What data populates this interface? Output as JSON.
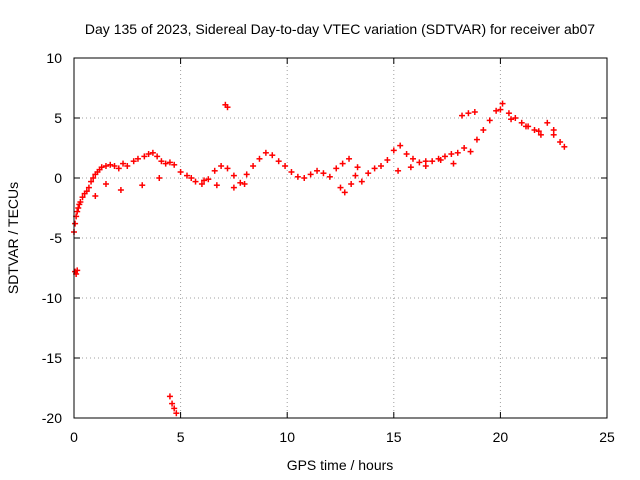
{
  "chart_data": {
    "type": "scatter",
    "title": "Day 135 of 2023, Sidereal Day-to-day VTEC variation (SDTVAR) for receiver ab07",
    "xlabel": "GPS time / hours",
    "ylabel": "SDTVAR / TECUs",
    "xlim": [
      0,
      25
    ],
    "ylim": [
      -20,
      10
    ],
    "xticks": [
      0,
      5,
      10,
      15,
      20,
      25
    ],
    "yticks": [
      -20,
      -15,
      -10,
      -5,
      0,
      5,
      10
    ],
    "xtick_labels": [
      "0",
      "5",
      "10",
      "15",
      "20",
      "25"
    ],
    "ytick_labels": [
      "-20",
      "-15",
      "-10",
      "-5",
      "0",
      "5",
      "10"
    ],
    "grid": true,
    "marker": "+",
    "series_color": "#ff0000",
    "series": [
      {
        "name": "SDTVAR",
        "x": [
          0.0,
          0.05,
          0.1,
          0.15,
          0.2,
          0.25,
          0.3,
          0.4,
          0.5,
          0.6,
          0.7,
          0.8,
          0.9,
          1.0,
          1.1,
          1.2,
          1.3,
          1.5,
          1.7,
          1.9,
          2.1,
          2.3,
          2.5,
          2.8,
          3.0,
          3.3,
          3.5,
          3.7,
          3.9,
          4.1,
          4.3,
          4.5,
          4.7,
          5.0,
          5.3,
          5.5,
          5.7,
          6.0,
          6.3,
          6.6,
          6.9,
          7.2,
          7.5,
          7.8,
          8.1,
          8.4,
          8.7,
          9.0,
          9.3,
          9.6,
          9.9,
          10.2,
          10.5,
          10.8,
          11.1,
          11.4,
          11.7,
          12.0,
          12.3,
          12.6,
          12.9,
          13.2,
          13.5,
          13.8,
          14.1,
          14.4,
          14.7,
          15.0,
          15.3,
          15.6,
          15.9,
          16.2,
          16.5,
          16.8,
          17.1,
          17.4,
          17.7,
          18.0,
          18.3,
          18.6,
          18.9,
          19.2,
          19.5,
          19.8,
          20.1,
          20.4,
          20.7,
          21.0,
          21.3,
          21.6,
          21.9,
          22.2,
          22.5,
          22.8,
          23.0,
          0.05,
          0.1,
          0.15,
          4.5,
          4.6,
          4.7,
          4.8,
          7.1,
          7.2,
          1.0,
          1.5,
          2.2,
          3.2,
          4.0,
          6.1,
          6.7,
          7.5,
          8.0,
          12.5,
          12.7,
          13.0,
          13.3,
          15.2,
          15.8,
          16.5,
          17.2,
          17.8,
          18.2,
          18.5,
          18.8,
          20.0,
          20.5,
          21.2,
          21.8,
          22.5
        ],
        "y": [
          -4.5,
          -3.8,
          -3.2,
          -2.8,
          -2.5,
          -2.2,
          -2.0,
          -1.6,
          -1.3,
          -1.1,
          -0.8,
          -0.3,
          0.0,
          0.3,
          0.5,
          0.7,
          0.9,
          1.0,
          1.1,
          1.0,
          0.8,
          1.2,
          1.0,
          1.4,
          1.6,
          1.8,
          2.0,
          2.1,
          1.8,
          1.4,
          1.2,
          1.3,
          1.1,
          0.5,
          0.2,
          0.0,
          -0.3,
          -0.5,
          -0.1,
          0.6,
          1.0,
          0.8,
          0.2,
          -0.4,
          0.3,
          1.0,
          1.6,
          2.1,
          1.9,
          1.4,
          1.0,
          0.5,
          0.1,
          0.0,
          0.3,
          0.6,
          0.4,
          0.1,
          0.8,
          1.2,
          1.6,
          0.2,
          -0.3,
          0.4,
          0.8,
          1.0,
          1.5,
          2.3,
          2.7,
          2.0,
          1.6,
          1.3,
          1.0,
          1.4,
          1.6,
          1.8,
          2.0,
          2.1,
          2.5,
          2.2,
          3.2,
          4.0,
          4.8,
          5.6,
          6.2,
          5.4,
          5.0,
          4.6,
          4.3,
          4.0,
          3.6,
          4.6,
          4.0,
          3.0,
          2.6,
          -7.8,
          -8.0,
          -7.7,
          -18.2,
          -18.8,
          -19.2,
          -19.6,
          6.1,
          5.9,
          -1.5,
          -0.5,
          -1.0,
          -0.6,
          0.0,
          -0.2,
          -0.6,
          -0.8,
          -0.5,
          -0.8,
          -1.2,
          -0.5,
          0.9,
          0.6,
          0.9,
          1.4,
          1.5,
          1.2,
          5.2,
          5.4,
          5.5,
          5.7,
          4.9,
          4.3,
          3.9,
          3.6
        ]
      }
    ]
  }
}
